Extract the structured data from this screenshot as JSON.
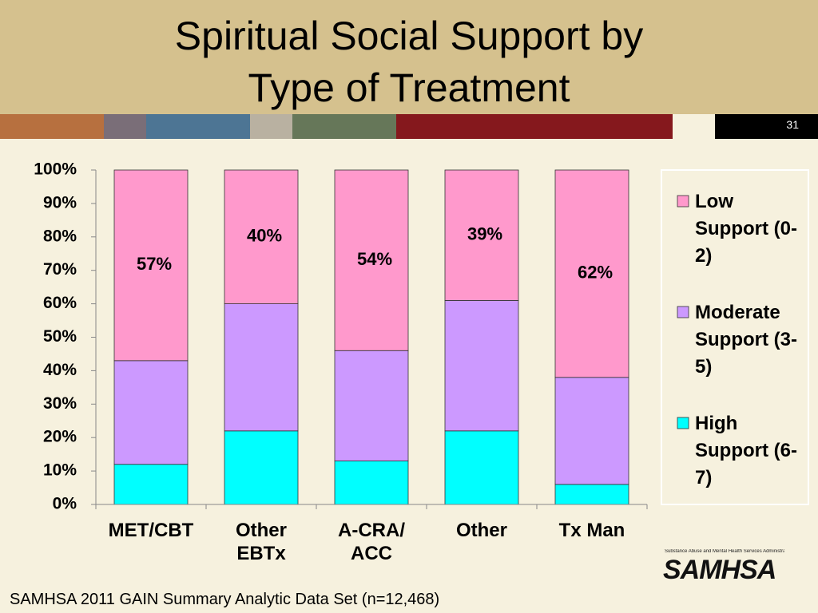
{
  "slide": {
    "title_lines": [
      "Spiritual Social Support by",
      "Type of Treatment"
    ],
    "number": "31",
    "footer": "SAMHSA 2011 GAIN Summary Analytic Data Set (n=12,468)",
    "logo": "SAMHSA",
    "logo_tagline": "Substance Abuse and Mental Health Services Administration"
  },
  "chart_data": {
    "type": "stacked_bar",
    "categories": [
      "MET/CBT",
      "Other EBTx",
      "A-CRA/ ACC",
      "Other",
      "Tx Man"
    ],
    "series": [
      {
        "name": "High Support (6-7)",
        "color": "#00ffff",
        "values": [
          12,
          22,
          13,
          22,
          6
        ]
      },
      {
        "name": "Moderate Support (3-5)",
        "color": "#cc99ff",
        "values": [
          31,
          38,
          33,
          39,
          32
        ]
      },
      {
        "name": "Low Support (0-2)",
        "color": "#ff99cc",
        "values": [
          57,
          40,
          54,
          39,
          62
        ],
        "value_labels": [
          "57%",
          "40%",
          "54%",
          "39%",
          "62%"
        ]
      }
    ],
    "ylim": [
      0,
      100
    ],
    "yticks": [
      {
        "value": 0,
        "label": "0%"
      },
      {
        "value": 10,
        "label": "10%"
      },
      {
        "value": 20,
        "label": "20%"
      },
      {
        "value": 30,
        "label": "30%"
      },
      {
        "value": 40,
        "label": "40%"
      },
      {
        "value": 50,
        "label": "50%"
      },
      {
        "value": 60,
        "label": "60%"
      },
      {
        "value": 70,
        "label": "70%"
      },
      {
        "value": 80,
        "label": "80%"
      },
      {
        "value": 90,
        "label": "90%"
      },
      {
        "value": 100,
        "label": "100%"
      }
    ],
    "grid": false,
    "legend": "right"
  }
}
